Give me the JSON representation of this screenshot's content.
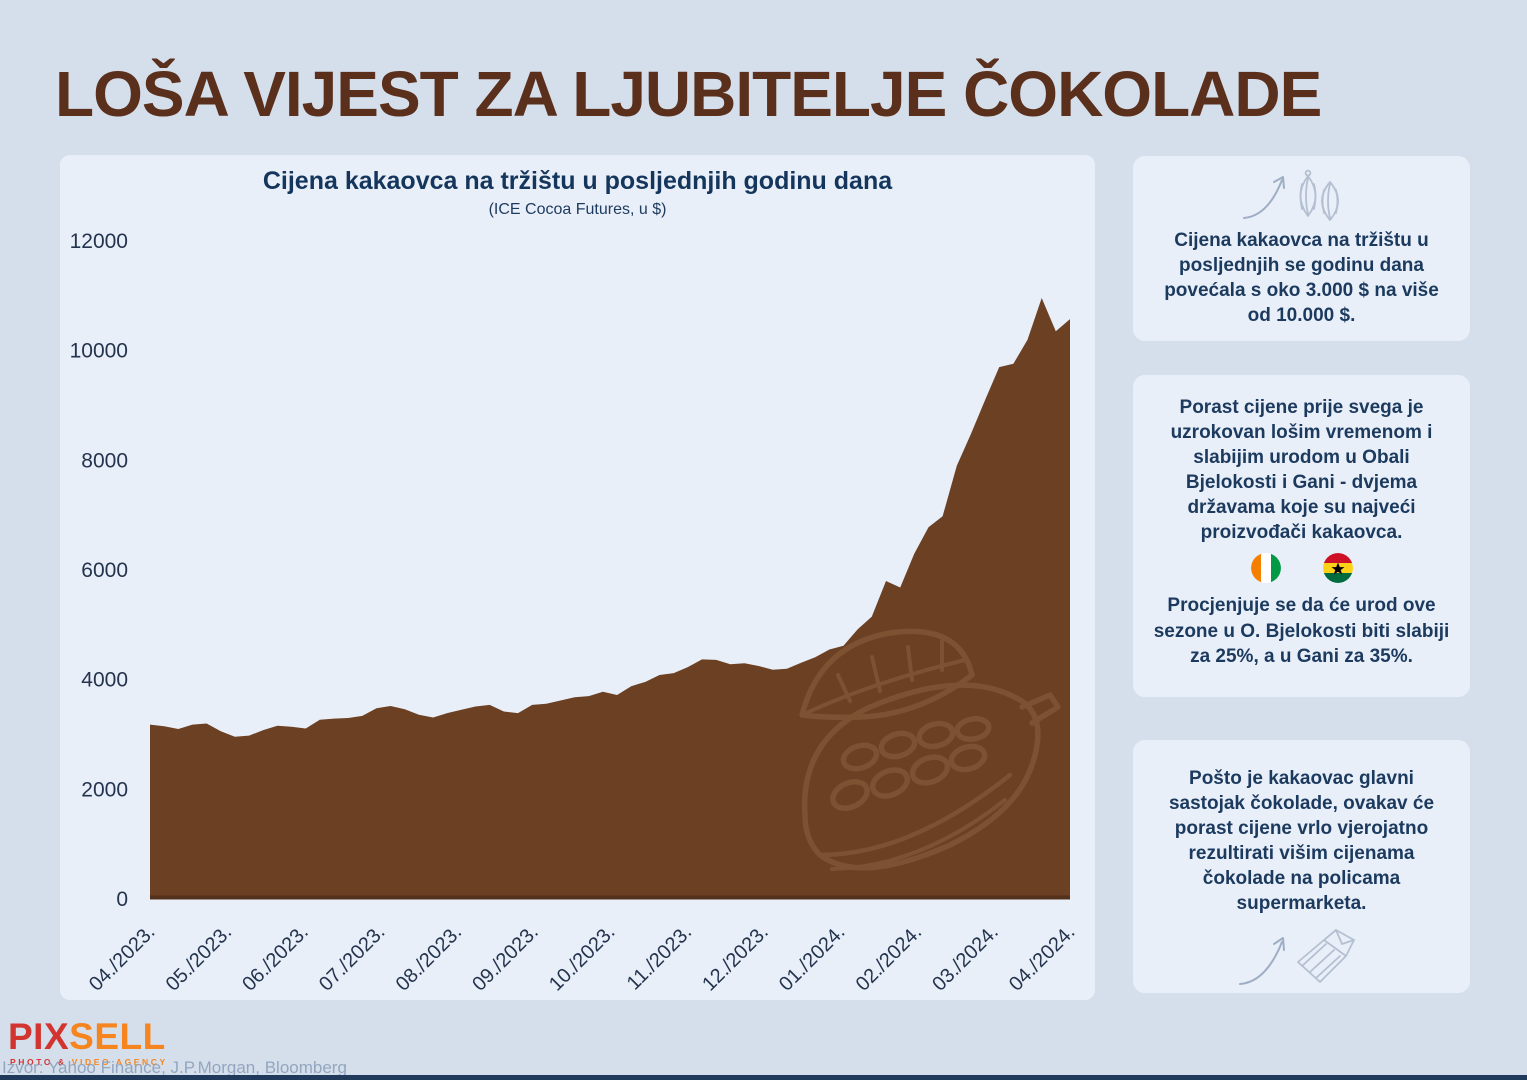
{
  "page": {
    "title": "LOŠA VIJEST ZA LJUBITELJE ČOKOLADE",
    "source_line": "Izvor: Yahoo Finance, J.P.Morgan, Bloomberg"
  },
  "logo": {
    "part1": "PIX",
    "part2": "SELL",
    "tagline_part1": "PHOTO & ",
    "tagline_part2": "VIDEO AGENCY"
  },
  "chart": {
    "title": "Cijena kakaovca na tržištu u posljednjih godinu dana",
    "subtitle": "(ICE Cocoa Futures, u $)"
  },
  "chart_data": {
    "type": "area",
    "title": "Cijena kakaovca na tržištu u posljednjih godinu dana",
    "subtitle": "(ICE Cocoa Futures, u $)",
    "x_tick_labels": [
      "04./2023.",
      "05./2023.",
      "06./2023.",
      "07./2023.",
      "08./2023.",
      "09./2023.",
      "10./2023.",
      "11./2023.",
      "12./2023.",
      "01./2024.",
      "02./2024.",
      "03./2024.",
      "04./2024."
    ],
    "y_ticks": [
      0,
      2000,
      4000,
      6000,
      8000,
      10000,
      12000
    ],
    "ylim": [
      0,
      12000
    ],
    "x_range": "04/2023 do 04/2024, tjedne vrijednosti ravnomjerno raspoređene",
    "values": [
      3180,
      3150,
      3100,
      3180,
      3200,
      3060,
      2960,
      2980,
      3080,
      3160,
      3140,
      3110,
      3270,
      3290,
      3300,
      3340,
      3480,
      3520,
      3460,
      3360,
      3310,
      3390,
      3450,
      3510,
      3540,
      3420,
      3390,
      3540,
      3560,
      3620,
      3680,
      3700,
      3780,
      3720,
      3880,
      3960,
      4085,
      4120,
      4230,
      4370,
      4360,
      4280,
      4300,
      4250,
      4180,
      4200,
      4310,
      4410,
      4550,
      4620,
      4920,
      5150,
      5800,
      5680,
      6300,
      6780,
      6980,
      7900,
      8480,
      9100,
      9700,
      9760,
      10200,
      10960,
      10355,
      10575
    ],
    "grid": false,
    "legend": false,
    "area_color": "#6b4023",
    "baseline_color": "#54311b",
    "watermark_color": "#7d5233"
  },
  "sidebar": {
    "box1": {
      "icon": "arrow-up-cocoa-pods",
      "text": "Cijena kakaovca na tržištu u posljednjih se godinu dana povećala s oko 3.000 $ na više od 10.000 $."
    },
    "box2": {
      "text1": "Porast cijene prije svega je uzrokovan lošim vremenom i slabijim urodom u Obali Bjelokosti i Gani - dvjema državama koje su najveći proizvođači kakaovca.",
      "flags": [
        "Obala Bjelokosti",
        "Gana"
      ],
      "text2": "Procjenjuje se da će urod ove sezone u O. Bjelokosti biti slabiji za 25%, a u Gani za 35%."
    },
    "box3": {
      "text": "Pošto je kakaovac glavni sastojak čokolade, ovakav će porast cijene vrlo vjerojatno rezultirati višim cijenama čokolade na policama supermarketa.",
      "icon": "arrow-up-chocolate-bar"
    }
  },
  "colors": {
    "page_background": "#d5dfec",
    "panel_background": "#e9eff9",
    "title_brown": "#5a301c",
    "navy_text": "#1b3a5e",
    "area_brown": "#6b4023",
    "logo_red": "#d23430",
    "logo_orange": "#f6851f",
    "ivory_coast_flag": [
      "#f77f00",
      "#ffffff",
      "#009a44"
    ],
    "ghana_flag": [
      "#ce1126",
      "#fcd116",
      "#006b3f",
      "#000000"
    ]
  }
}
